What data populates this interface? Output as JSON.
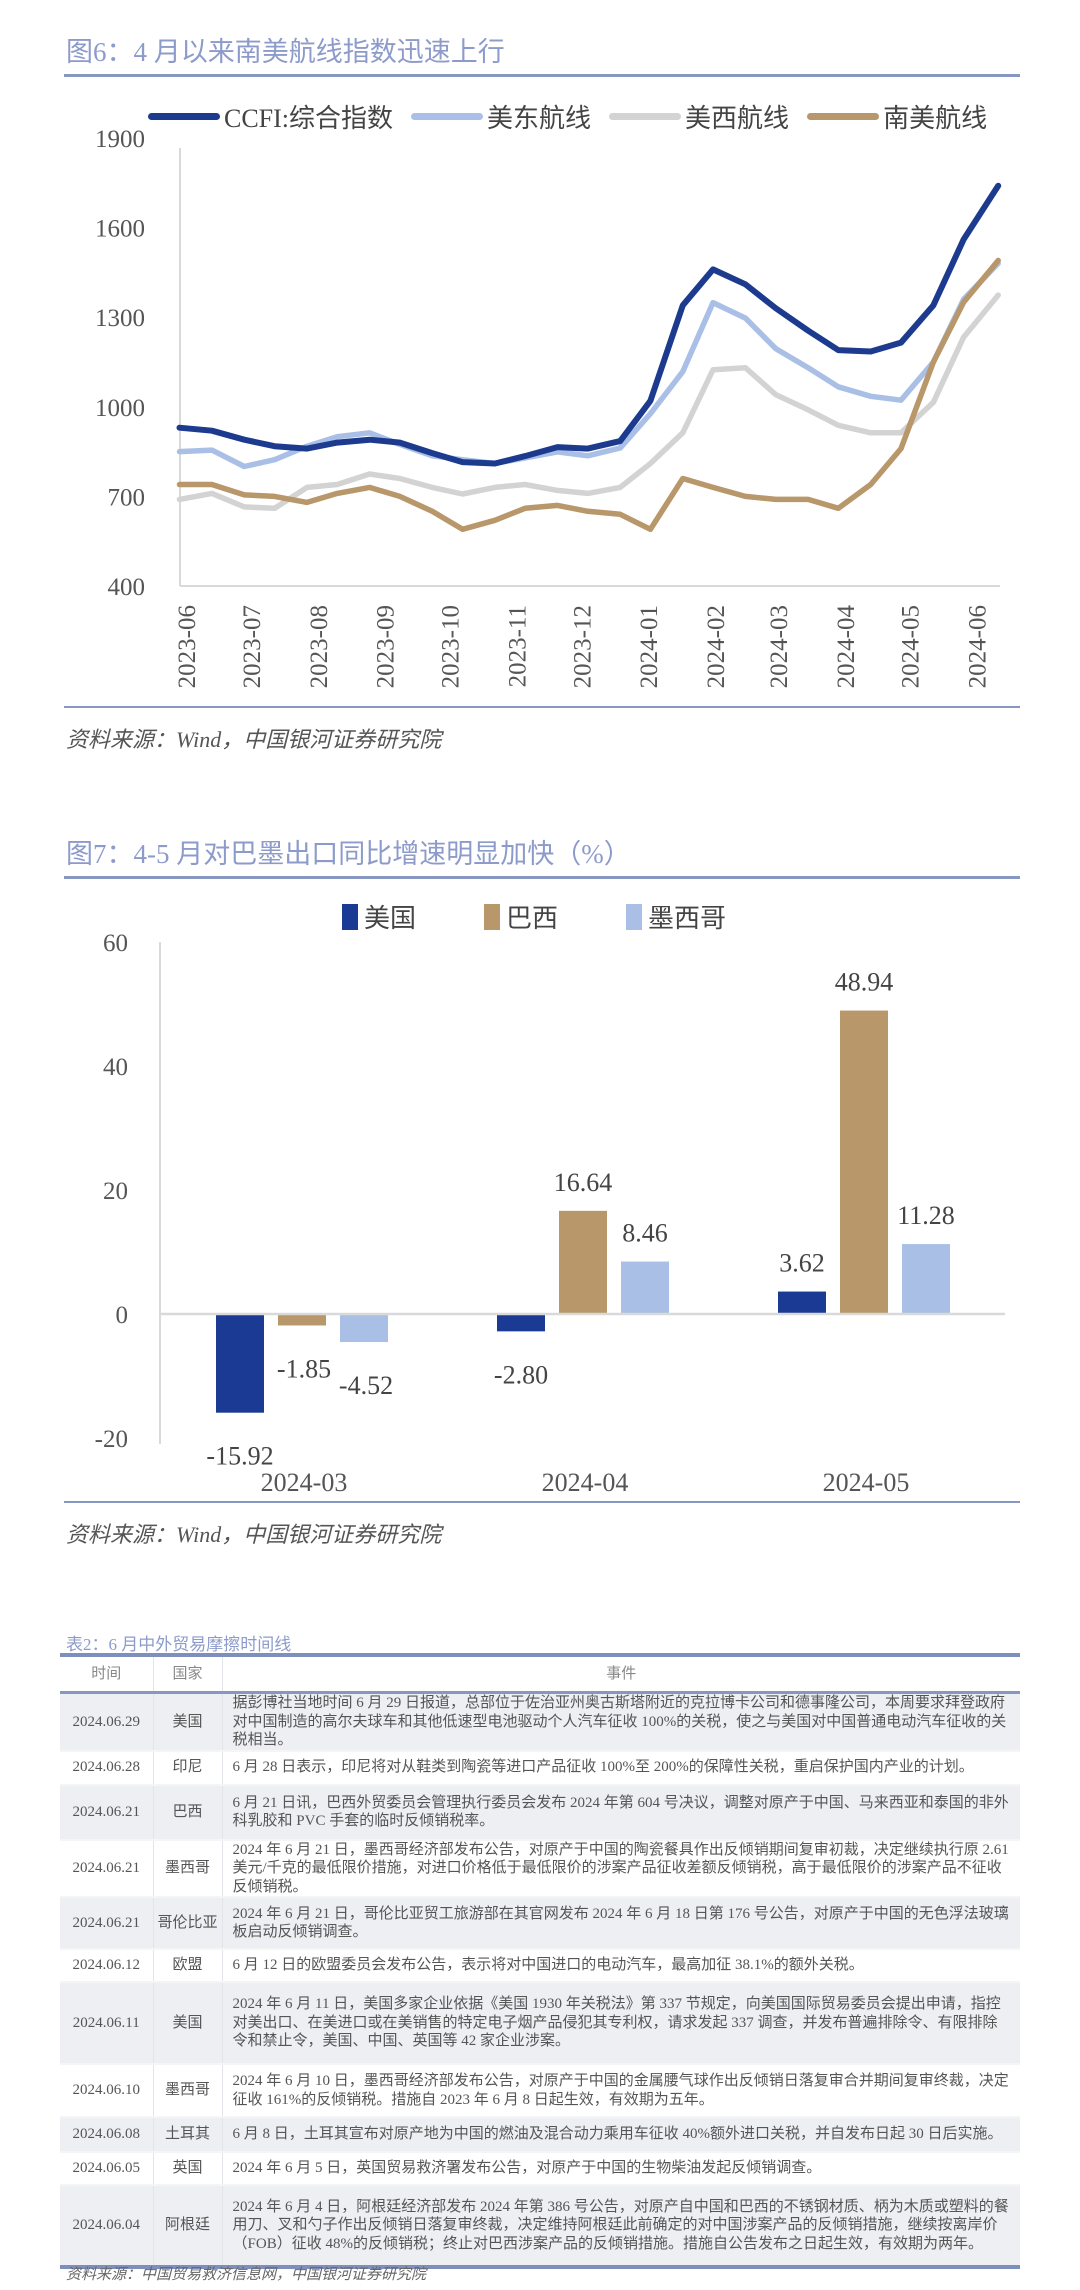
{
  "figure6": {
    "title": "图6：4 月以来南美航线指数迅速上行",
    "source": "资料来源：Wind，中国银河证券研究院"
  },
  "figure7": {
    "title": "图7：4-5 月对巴墨出口同比增速明显加快（%）",
    "source": "资料来源：Wind，中国银河证券研究院"
  },
  "chart_data": [
    {
      "type": "line",
      "title": "",
      "xlabel": "",
      "ylabel": "",
      "ylim": [
        400,
        1900
      ],
      "yticks": [
        "1900",
        "1600",
        "1300",
        "1000",
        "700",
        "400"
      ],
      "xticks": [
        "2023-06",
        "2023-07",
        "2023-08",
        "2023-09",
        "2023-10",
        "2023-11",
        "2023-12",
        "2024-01",
        "2024-02",
        "2024-03",
        "2024-04",
        "2024-05",
        "2024-06"
      ],
      "grid": false,
      "legend": "top",
      "x": [
        "2023-05-29",
        "2023-06-13",
        "2023-06-28",
        "2023-07-12",
        "2023-07-27",
        "2023-08-10",
        "2023-08-25",
        "2023-09-08",
        "2023-09-23",
        "2023-10-07",
        "2023-10-22",
        "2023-11-05",
        "2023-11-20",
        "2023-12-04",
        "2023-12-19",
        "2024-01-02",
        "2024-01-17",
        "2024-01-31",
        "2024-02-15",
        "2024-02-29",
        "2024-03-15",
        "2024-03-29",
        "2024-04-13",
        "2024-04-27",
        "2024-05-12",
        "2024-05-26",
        "2024-06-11"
      ],
      "series": [
        {
          "name": "美东航线",
          "color": "#a9bfe6",
          "values": [
            850,
            855,
            800,
            823,
            868,
            900,
            913,
            874,
            836,
            823,
            810,
            829,
            849,
            836,
            862,
            977,
            1118,
            1349,
            1297,
            1195,
            1131,
            1067,
            1035,
            1022,
            1150,
            1360,
            1480
          ]
        },
        {
          "name": "美西航线",
          "color": "#d3d3d3",
          "values": [
            690,
            710,
            665,
            660,
            730,
            740,
            775,
            760,
            730,
            708,
            730,
            740,
            720,
            710,
            730,
            810,
            913,
            1124,
            1131,
            1041,
            990,
            938,
            913,
            913,
            1015,
            1233,
            1374
          ]
        },
        {
          "name": "南美航线",
          "color": "#b8976a",
          "values": [
            740,
            740,
            705,
            700,
            680,
            710,
            730,
            700,
            650,
            590,
            620,
            660,
            670,
            650,
            640,
            590,
            760,
            730,
            700,
            690,
            690,
            660,
            740,
            860,
            1150,
            1350,
            1490
          ]
        },
        {
          "name": "CCFI:综合指数",
          "color": "#1c3a8e",
          "values": [
            930,
            920,
            890,
            868,
            860,
            880,
            890,
            880,
            845,
            815,
            810,
            835,
            865,
            860,
            885,
            1020,
            1340,
            1460,
            1410,
            1330,
            1255,
            1190,
            1185,
            1215,
            1340,
            1560,
            1740
          ]
        }
      ],
      "legend_order": [
        "CCFI:综合指数",
        "美东航线",
        "美西航线",
        "南美航线"
      ]
    },
    {
      "type": "bar",
      "title": "",
      "xlabel": "",
      "ylabel": "",
      "ylim": [
        -20,
        60
      ],
      "yticks": [
        "60",
        "40",
        "20",
        "0",
        "-20"
      ],
      "categories": [
        "2024-03",
        "2024-04",
        "2024-05"
      ],
      "legend": "top",
      "series": [
        {
          "name": "美国",
          "color": "#1a3a94",
          "values": [
            -15.92,
            -2.8,
            3.62
          ],
          "labels": [
            "-15.92",
            "-2.80",
            "3.62"
          ]
        },
        {
          "name": "巴西",
          "color": "#b8976a",
          "values": [
            -1.85,
            16.64,
            48.94
          ],
          "labels": [
            "-1.85",
            "16.64",
            "48.94"
          ]
        },
        {
          "name": "墨西哥",
          "color": "#a9bfe6",
          "values": [
            -4.52,
            8.46,
            11.28
          ],
          "labels": [
            "-4.52",
            "8.46",
            "11.28"
          ]
        }
      ]
    }
  ],
  "table": {
    "title": "表2：6 月中外贸易摩擦时间线",
    "headers": [
      "时间",
      "国家",
      "事件"
    ],
    "rows": [
      {
        "date": "2024.06.29",
        "country": "美国",
        "event": "据彭博社当地时间 6 月 29 日报道，总部位于佐治亚州奥古斯塔附近的克拉博卡公司和德事隆公司，本周要求拜登政府对中国制造的高尔夫球车和其他低速型电池驱动个人汽车征收 100%的关税，使之与美国对中国普通电动汽车征收的关税相当。"
      },
      {
        "date": "2024.06.28",
        "country": "印尼",
        "event": "6 月 28 日表示，印尼将对从鞋类到陶瓷等进口产品征收 100%至 200%的保障性关税，重启保护国内产业的计划。"
      },
      {
        "date": "2024.06.21",
        "country": "巴西",
        "event": "6 月 21 日讯，巴西外贸委员会管理执行委员会发布 2024 年第 604 号决议，调整对原产于中国、马来西亚和泰国的非外科乳胶和 PVC 手套的临时反倾销税率。"
      },
      {
        "date": "2024.06.21",
        "country": "墨西哥",
        "event": "2024 年 6 月 21 日，墨西哥经济部发布公告，对原产于中国的陶瓷餐具作出反倾销期间复审初裁，决定继续执行原 2.61 美元/千克的最低限价措施，对进口价格低于最低限价的涉案产品征收差额反倾销税，高于最低限价的涉案产品不征收反倾销税。"
      },
      {
        "date": "2024.06.21",
        "country": "哥伦比亚",
        "event": "2024 年 6 月 21 日，哥伦比亚贸工旅游部在其官网发布 2024 年 6 月 18 日第 176 号公告，对原产于中国的无色浮法玻璃板启动反倾销调查。"
      },
      {
        "date": "2024.06.12",
        "country": "欧盟",
        "event": "6 月 12 日的欧盟委员会发布公告，表示将对中国进口的电动汽车，最高加征 38.1%的额外关税。"
      },
      {
        "date": "2024.06.11",
        "country": "美国",
        "event": "2024 年 6 月 11 日，美国多家企业依据《美国 1930 年关税法》第 337 节规定，向美国国际贸易委员会提出申请，指控对美出口、在美进口或在美销售的特定电子烟产品侵犯其专利权，请求发起 337 调查，并发布普遍排除令、有限排除令和禁止令，美国、中国、英国等 42 家企业涉案。"
      },
      {
        "date": "2024.06.10",
        "country": "墨西哥",
        "event": "2024 年 6 月 10 日，墨西哥经济部发布公告，对原产于中国的金属腰气球作出反倾销日落复审合并期间复审终裁，决定征收 161%的反倾销税。措施自 2023 年 6 月 8 日起生效，有效期为五年。"
      },
      {
        "date": "2024.06.08",
        "country": "土耳其",
        "event": "6 月 8 日，土耳其宣布对原产地为中国的燃油及混合动力乘用车征收 40%额外进口关税，并自发布日起 30 日后实施。"
      },
      {
        "date": "2024.06.05",
        "country": "英国",
        "event": "2024 年 6 月 5 日，英国贸易救济署发布公告，对原产于中国的生物柴油发起反倾销调查。"
      },
      {
        "date": "2024.06.04",
        "country": "阿根廷",
        "event": "2024 年 6 月 4 日，阿根廷经济部发布 2024 年第 386 号公告，对原产自中国和巴西的不锈钢材质、柄为木质或塑料的餐用刀、叉和勺子作出反倾销日落复审终裁，决定维持阿根廷此前确定的对中国涉案产品的反倾销措施，继续按离岸价（FOB）征收 48%的反倾销税；终止对巴西涉案产品的反倾销措施。措施自公告发布之日起生效，有效期为两年。"
      }
    ],
    "source": "资料来源：中国贸易救济信息网，中国银河证券研究院"
  }
}
